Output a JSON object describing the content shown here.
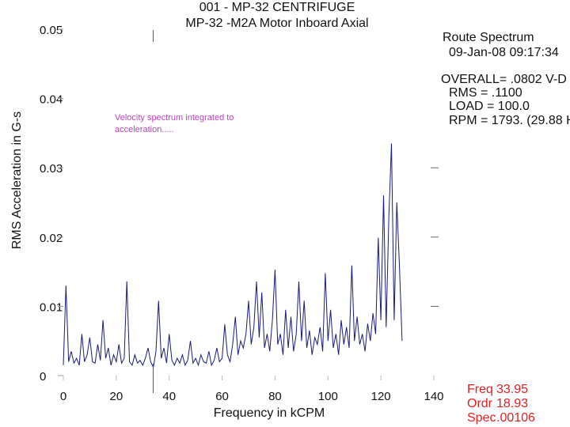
{
  "chart_data": {
    "type": "line",
    "title": "001  - MP-32 CENTRIFUGE",
    "subtitle": "MP-32    -M2A   Motor Inboard Axial",
    "x_label": "Frequency in kCPM",
    "y_label": "RMS Acceleration in G-s",
    "annotation": [
      "Velocity spectrum integrated to",
      "acceleration....."
    ],
    "info": [
      "Route Spectrum",
      "09-Jan-08  09:17:34",
      "OVERALL= .0802 V-D",
      "RMS = .1100",
      "LOAD = 100.0",
      "RPM = 1793. (29.88 H"
    ],
    "cursor": [
      {
        "name": "Freq",
        "value": "33.95"
      },
      {
        "name": "Ordr",
        "value": "18.93"
      },
      {
        "name": "Spec",
        "value": ".00106"
      }
    ],
    "xlim": [
      0,
      140
    ],
    "xticks": [
      0,
      20,
      40,
      60,
      80,
      100,
      120,
      140
    ],
    "ylim": [
      0,
      0.05
    ],
    "yticks": [
      0,
      0.01,
      0.02,
      0.03,
      0.04,
      0.05
    ],
    "x": [
      0,
      1,
      2,
      3,
      4,
      5,
      6,
      7,
      8,
      9,
      10,
      11,
      12,
      13,
      14,
      15,
      16,
      17,
      18,
      19,
      20,
      21,
      22,
      23,
      24,
      25,
      26,
      27,
      28,
      29,
      30,
      31,
      32,
      33,
      34,
      35,
      36,
      37,
      38,
      39,
      40,
      41,
      42,
      43,
      44,
      45,
      46,
      47,
      48,
      49,
      50,
      51,
      52,
      53,
      54,
      55,
      56,
      57,
      58,
      59,
      60,
      61,
      62,
      63,
      64,
      65,
      66,
      67,
      68,
      69,
      70,
      71,
      72,
      73,
      74,
      75,
      76,
      77,
      78,
      79,
      80,
      81,
      82,
      83,
      84,
      85,
      86,
      87,
      88,
      89,
      90,
      91,
      92,
      93,
      94,
      95,
      96,
      97,
      98,
      99,
      100,
      101,
      102,
      103,
      104,
      105,
      106,
      107,
      108,
      109,
      110,
      111,
      112,
      113,
      114,
      115,
      116,
      117,
      118,
      119,
      120,
      121,
      122,
      123,
      124,
      125,
      126,
      127,
      128
    ],
    "series": [
      {
        "name": "spectrum",
        "color": "#1a1a7a",
        "values": [
          0.0015,
          0.013,
          0.002,
          0.0035,
          0.0018,
          0.0025,
          0.0015,
          0.006,
          0.002,
          0.003,
          0.0055,
          0.002,
          0.0018,
          0.0045,
          0.0022,
          0.008,
          0.0025,
          0.004,
          0.0015,
          0.003,
          0.002,
          0.0045,
          0.0018,
          0.0025,
          0.0136,
          0.002,
          0.0015,
          0.003,
          0.0018,
          0.0022,
          0.0015,
          0.0025,
          0.004,
          0.002,
          0.0012,
          0.0035,
          0.0108,
          0.0025,
          0.004,
          0.0018,
          0.006,
          0.0022,
          0.0015,
          0.0025,
          0.0018,
          0.003,
          0.0015,
          0.0022,
          0.005,
          0.0018,
          0.0025,
          0.0015,
          0.003,
          0.002,
          0.0018,
          0.0035,
          0.0015,
          0.0022,
          0.004,
          0.002,
          0.0025,
          0.0074,
          0.003,
          0.002,
          0.0045,
          0.0085,
          0.003,
          0.005,
          0.004,
          0.006,
          0.0108,
          0.0045,
          0.007,
          0.0136,
          0.0055,
          0.012,
          0.004,
          0.006,
          0.0035,
          0.008,
          0.0153,
          0.0045,
          0.006,
          0.003,
          0.0095,
          0.004,
          0.0085,
          0.0035,
          0.006,
          0.0136,
          0.005,
          0.0108,
          0.004,
          0.0065,
          0.003,
          0.0055,
          0.0045,
          0.007,
          0.0035,
          0.0148,
          0.005,
          0.0095,
          0.004,
          0.006,
          0.003,
          0.008,
          0.0045,
          0.007,
          0.004,
          0.0159,
          0.005,
          0.0085,
          0.0045,
          0.006,
          0.0035,
          0.0075,
          0.005,
          0.009,
          0.006,
          0.0199,
          0.008,
          0.026,
          0.007,
          0.023,
          0.0335,
          0.008,
          0.025,
          0.016,
          0.005
        ]
      }
    ],
    "cursor_color": "#e02020"
  }
}
